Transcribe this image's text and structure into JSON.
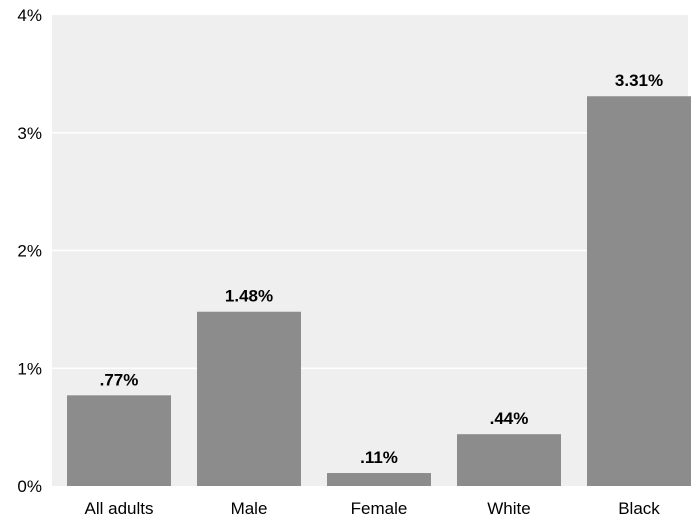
{
  "chart_data": {
    "type": "bar",
    "title": "",
    "xlabel": "",
    "ylabel": "",
    "categories": [
      "All adults",
      "Male",
      "Female",
      "White",
      "Black"
    ],
    "values": [
      0.77,
      1.48,
      0.11,
      0.44,
      3.31
    ],
    "data_labels": [
      ".77%",
      "1.48%",
      ".11%",
      ".44%",
      "3.31%"
    ],
    "ylim": [
      0,
      4
    ],
    "yticks": [
      0,
      1,
      2,
      3,
      4
    ],
    "ytick_labels": [
      "0%",
      "1%",
      "2%",
      "3%",
      "4%"
    ],
    "grid": true,
    "legend": "none",
    "colors": {
      "bar": "#8c8c8c",
      "plot_background": "#efefef",
      "gridline": "#ffffff"
    }
  }
}
